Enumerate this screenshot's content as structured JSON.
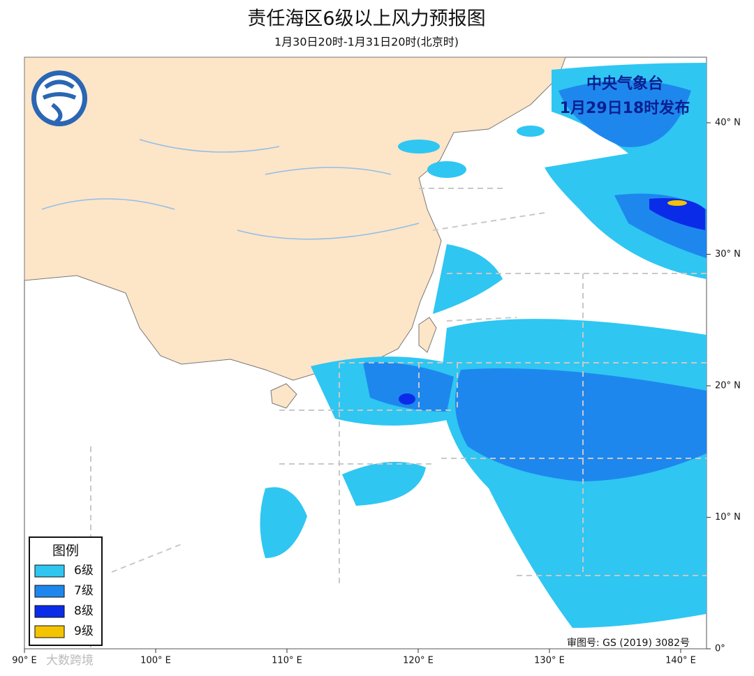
{
  "header": {
    "title": "责任海区6级以上风力预报图",
    "subtitle": "1月30日20时-1月31日20时(北京时)"
  },
  "publisher": {
    "name": "中央气象台",
    "issued": "1月29日18时发布"
  },
  "legend": {
    "title": "图例",
    "items": [
      "6级",
      "7级",
      "8级",
      "9级"
    ]
  },
  "axes": {
    "lat_labels": [
      "40° N",
      "30° N",
      "20° N",
      "10° N",
      "0°"
    ],
    "lon_labels": [
      "90° E",
      "100° E",
      "110° E",
      "120° E",
      "130° E",
      "140° E"
    ]
  },
  "review_number": "审图号: GS (2019) 3082号",
  "watermark": "大数跨境"
}
